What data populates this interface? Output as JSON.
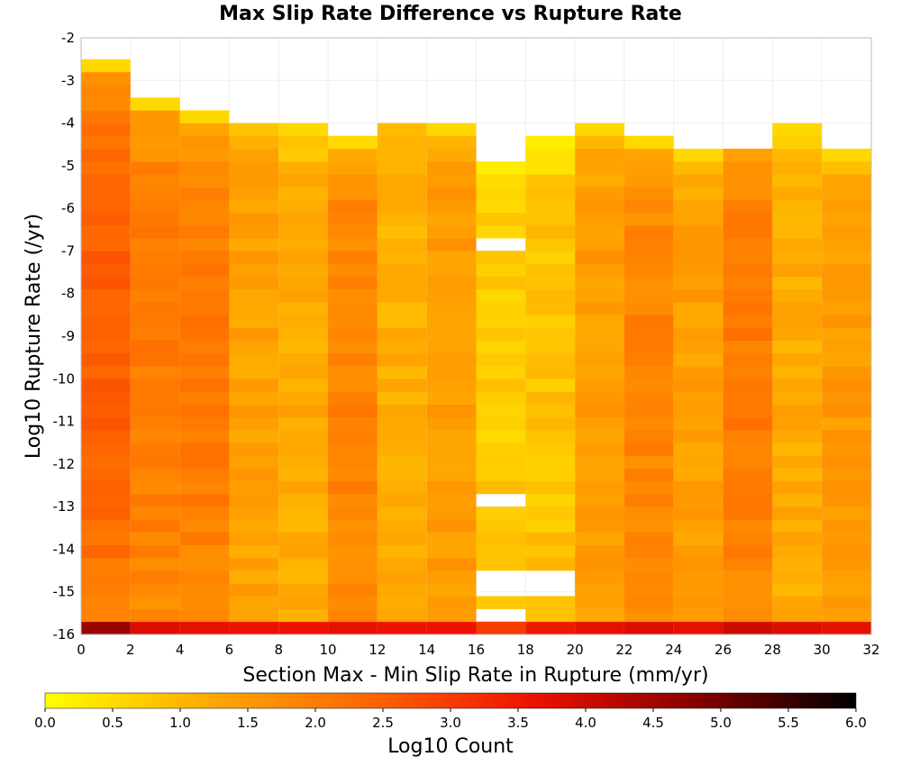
{
  "chart_data": {
    "type": "heatmap",
    "title": "Max Slip Rate Difference vs Rupture Rate",
    "xlabel": "Section Max - Min Slip Rate in Rupture (mm/yr)",
    "ylabel": "Log10 Rupture Rate (/yr)",
    "xlim": [
      0,
      32
    ],
    "ylim": [
      -16,
      -2
    ],
    "xticks": [
      "0",
      "2",
      "4",
      "6",
      "8",
      "10",
      "12",
      "14",
      "16",
      "18",
      "20",
      "22",
      "24",
      "26",
      "28",
      "30",
      "32"
    ],
    "yticks": [
      "-2",
      "-3",
      "-4",
      "-5",
      "-6",
      "-7",
      "-8",
      "-9",
      "-10",
      "-11",
      "-12",
      "-13",
      "-14",
      "-15",
      "-16"
    ],
    "x_bin_width": 2,
    "y_bin_height": 0.3,
    "y_bin_start": -16,
    "colorbar": {
      "label": "Log10 Count",
      "min": 0.0,
      "max": 6.0,
      "ticks": [
        "0.0",
        "0.5",
        "1.0",
        "1.5",
        "2.0",
        "2.5",
        "3.0",
        "3.5",
        "4.0",
        "4.5",
        "5.0",
        "5.5",
        "6.0"
      ],
      "colors": [
        "#ffff00",
        "#ffaa00",
        "#ff6600",
        "#ee1100",
        "#880000",
        "#000000"
      ]
    },
    "columns": [
      {
        "x": [
          0,
          2
        ],
        "top": -2.45,
        "base": 2.0,
        "profile": "peak_mid",
        "amp": 0.5
      },
      {
        "x": [
          2,
          4
        ],
        "top": -3.3,
        "base": 1.75,
        "profile": "peak_mid",
        "amp": 0.3
      },
      {
        "x": [
          4,
          6
        ],
        "top": -3.6,
        "base": 1.75,
        "profile": "peak_mid",
        "amp": 0.3
      },
      {
        "x": [
          6,
          8
        ],
        "top": -3.6,
        "base": 1.35,
        "profile": "flat",
        "amp": 0.2,
        "gaps": [
          -3.9
        ]
      },
      {
        "x": [
          8,
          10
        ],
        "top": -3.9,
        "base": 1.2,
        "profile": "flat",
        "amp": 0.2
      },
      {
        "x": [
          10,
          12
        ],
        "top": -4.2,
        "base": 1.7,
        "profile": "peak_mid",
        "amp": 0.2
      },
      {
        "x": [
          12,
          14
        ],
        "top": -3.6,
        "base": 1.15,
        "profile": "flat",
        "amp": 0.2,
        "gaps": [
          -3.9
        ]
      },
      {
        "x": [
          14,
          16
        ],
        "top": -3.9,
        "base": 1.45,
        "profile": "flat",
        "amp": 0.2
      },
      {
        "x": [
          16,
          18
        ],
        "top": -5.0,
        "base": 0.75,
        "profile": "flat",
        "amp": 0.2,
        "gaps": [
          -7.1,
          -12.9,
          -14.7,
          -15.0,
          -15.6
        ]
      },
      {
        "x": [
          18,
          20
        ],
        "top": -4.2,
        "base": 0.85,
        "profile": "flat",
        "amp": 0.2,
        "gaps": [
          -14.7,
          -15.0
        ]
      },
      {
        "x": [
          20,
          22
        ],
        "top": -3.9,
        "base": 1.45,
        "profile": "flat",
        "amp": 0.2
      },
      {
        "x": [
          22,
          24
        ],
        "top": -4.2,
        "base": 1.6,
        "profile": "peak_mid",
        "amp": 0.3
      },
      {
        "x": [
          24,
          26
        ],
        "top": -4.5,
        "base": 1.4,
        "profile": "flat",
        "amp": 0.2
      },
      {
        "x": [
          26,
          28
        ],
        "top": -4.2,
        "base": 1.75,
        "profile": "peak_mid",
        "amp": 0.3,
        "gaps": [
          -4.5
        ]
      },
      {
        "x": [
          28,
          30
        ],
        "top": -3.9,
        "base": 1.2,
        "profile": "flat",
        "amp": 0.2
      },
      {
        "x": [
          30,
          32
        ],
        "top": -4.5,
        "base": 1.45,
        "profile": "flat",
        "amp": 0.2
      }
    ],
    "bottom_row_values": [
      4.6,
      3.8,
      3.7,
      3.6,
      3.6,
      3.7,
      3.6,
      3.6,
      3.0,
      3.5,
      3.7,
      3.8,
      3.7,
      4.0,
      3.8,
      3.7
    ]
  }
}
